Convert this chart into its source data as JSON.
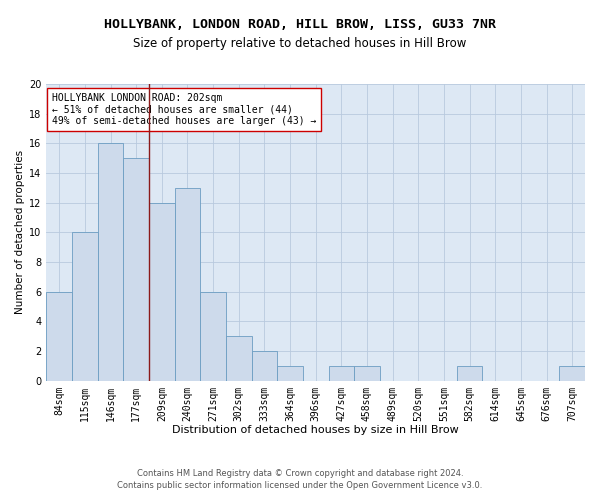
{
  "title1": "HOLLYBANK, LONDON ROAD, HILL BROW, LISS, GU33 7NR",
  "title2": "Size of property relative to detached houses in Hill Brow",
  "xlabel": "Distribution of detached houses by size in Hill Brow",
  "ylabel": "Number of detached properties",
  "categories": [
    "84sqm",
    "115sqm",
    "146sqm",
    "177sqm",
    "209sqm",
    "240sqm",
    "271sqm",
    "302sqm",
    "333sqm",
    "364sqm",
    "396sqm",
    "427sqm",
    "458sqm",
    "489sqm",
    "520sqm",
    "551sqm",
    "582sqm",
    "614sqm",
    "645sqm",
    "676sqm",
    "707sqm"
  ],
  "values": [
    6,
    10,
    16,
    15,
    12,
    13,
    6,
    3,
    2,
    1,
    0,
    1,
    1,
    0,
    0,
    0,
    1,
    0,
    0,
    0,
    1
  ],
  "bar_color": "#cddaeb",
  "bar_edge_color": "#6b9dc2",
  "vline_x_index": 4,
  "vline_color": "#8b1a1a",
  "annotation_text": "HOLLYBANK LONDON ROAD: 202sqm\n← 51% of detached houses are smaller (44)\n49% of semi-detached houses are larger (43) →",
  "annotation_box_color": "#ffffff",
  "annotation_box_edge_color": "#cc0000",
  "ylim": [
    0,
    20
  ],
  "yticks": [
    0,
    2,
    4,
    6,
    8,
    10,
    12,
    14,
    16,
    18,
    20
  ],
  "grid_color": "#b8c9de",
  "background_color": "#dde8f4",
  "footer1": "Contains HM Land Registry data © Crown copyright and database right 2024.",
  "footer2": "Contains public sector information licensed under the Open Government Licence v3.0.",
  "title1_fontsize": 9.5,
  "title2_fontsize": 8.5,
  "xlabel_fontsize": 8,
  "ylabel_fontsize": 7.5,
  "tick_fontsize": 7,
  "annotation_fontsize": 7,
  "footer_fontsize": 6
}
